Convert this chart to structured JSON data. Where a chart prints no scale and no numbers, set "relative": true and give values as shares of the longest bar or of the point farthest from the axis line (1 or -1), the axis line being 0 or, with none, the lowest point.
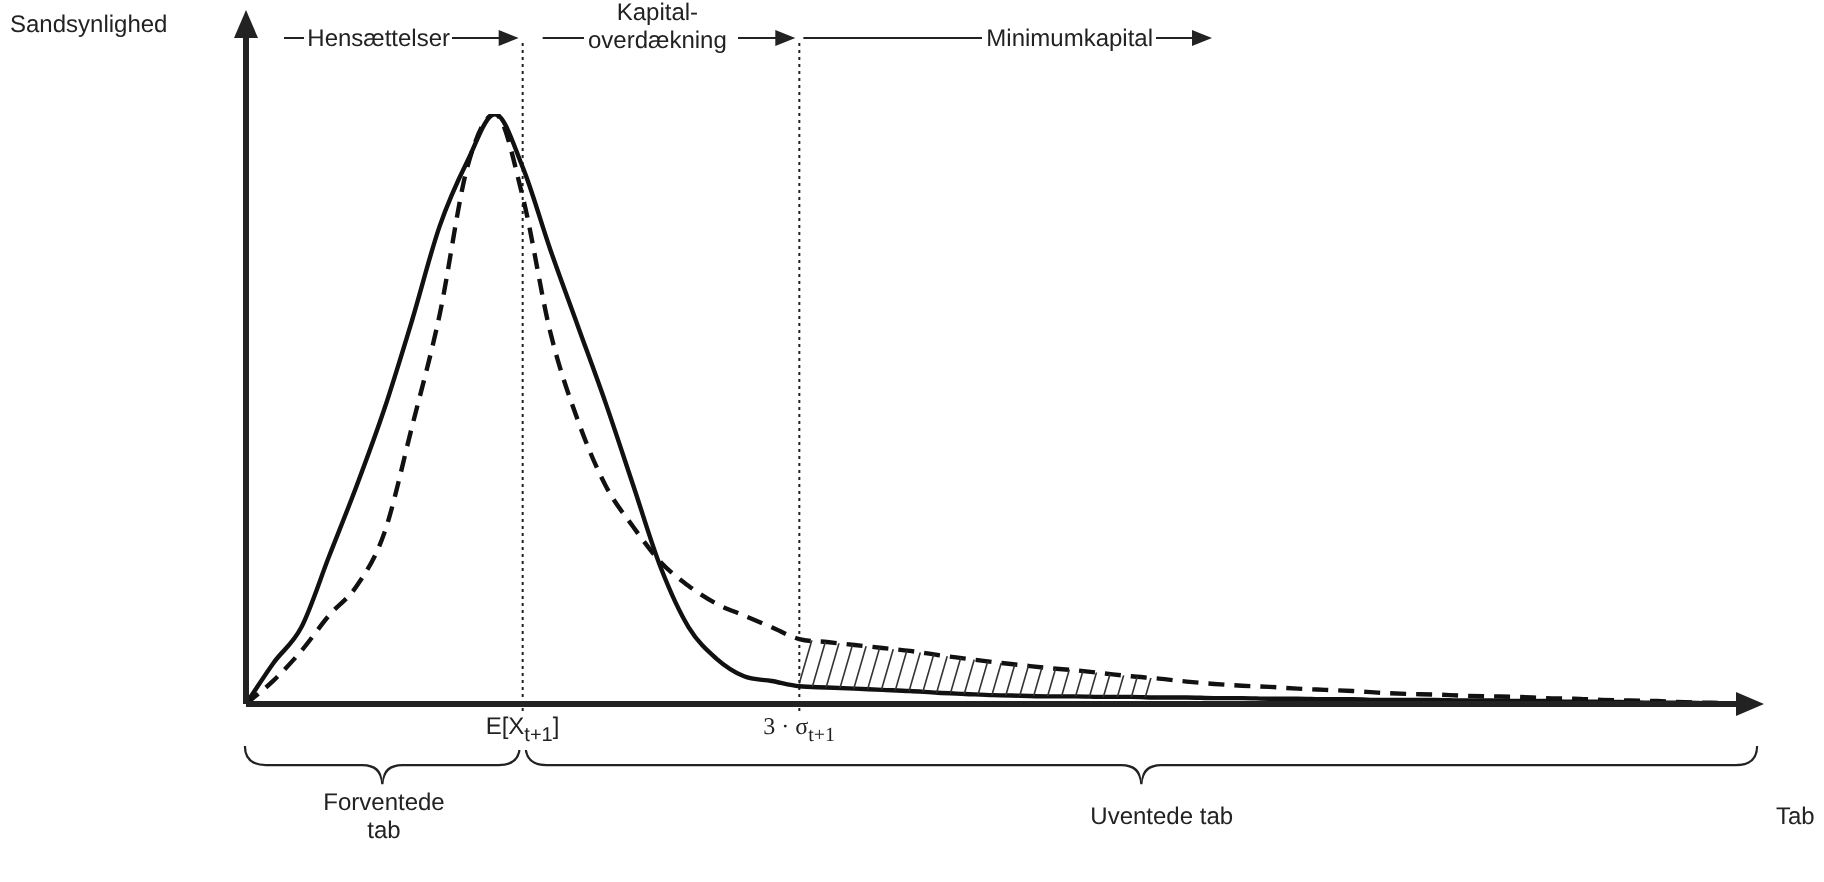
{
  "chart_data": {
    "type": "line",
    "relative": true,
    "ylabel": "Sandsynlighed",
    "xlabel": "Tab",
    "categories": [
      null,
      null,
      null,
      null,
      null,
      null,
      null,
      null,
      null,
      null,
      "E[X$_{t+1}$]",
      null,
      null,
      null,
      null,
      null,
      null,
      null,
      null,
      null,
      "3 · σ$_{t+1}$",
      null,
      null,
      null,
      null,
      null,
      null,
      null,
      null,
      null,
      null,
      null,
      null,
      null,
      null,
      null,
      null,
      null,
      null,
      null,
      null,
      null,
      null,
      null,
      null,
      null,
      null,
      null,
      null,
      null,
      null,
      null,
      null,
      null,
      null
    ],
    "series": [
      {
        "color": "#111111",
        "line_style": "solid",
        "values": [
          0,
          0.07,
          0.13,
          0.25,
          0.37,
          0.5,
          0.65,
          0.81,
          0.92,
          1,
          0.91,
          0.77,
          0.64,
          0.51,
          0.37,
          0.23,
          0.13,
          0.077,
          0.047,
          0.039,
          0.03,
          0.028,
          0.026,
          0.024,
          0.022,
          0.019,
          0.017,
          0.015,
          0.014,
          0.013,
          0.013,
          0.012,
          0.012,
          0.011,
          0.011,
          0.01,
          0.01,
          0.009,
          0.009,
          0.008,
          0.008,
          0.007,
          0.007,
          0.007,
          0.006,
          0.006,
          0.005,
          0.005,
          0.004,
          0.004,
          0.003,
          0.002,
          0.002,
          0.001,
          0
        ]
      },
      {
        "color": "#111111",
        "line_style": "dashed",
        "values": [
          0,
          0.04,
          0.09,
          0.15,
          0.2,
          0.29,
          0.47,
          0.66,
          0.91,
          1,
          0.86,
          0.63,
          0.48,
          0.37,
          0.3,
          0.24,
          0.2,
          0.17,
          0.15,
          0.13,
          0.11,
          0.105,
          0.1,
          0.095,
          0.09,
          0.083,
          0.077,
          0.071,
          0.066,
          0.061,
          0.057,
          0.052,
          0.047,
          0.043,
          0.038,
          0.034,
          0.031,
          0.029,
          0.026,
          0.024,
          0.022,
          0.019,
          0.017,
          0.016,
          0.014,
          0.013,
          0.012,
          0.01,
          0.009,
          0.007,
          0.006,
          0.005,
          0.003,
          0.002,
          0
        ]
      }
    ],
    "ref_lines": [
      {
        "axis": "x",
        "value": "E[X$_{t+1}$]",
        "line_style": "dotted"
      },
      {
        "axis": "x",
        "value": "3 · σ$_{t+1}$",
        "line_style": "dotted"
      }
    ],
    "annotations": [
      "Hensættelser",
      "Kapital-\noverdækning",
      "Minimumkapital",
      "Forventede\ntab",
      "Uventede tab"
    ]
  }
}
